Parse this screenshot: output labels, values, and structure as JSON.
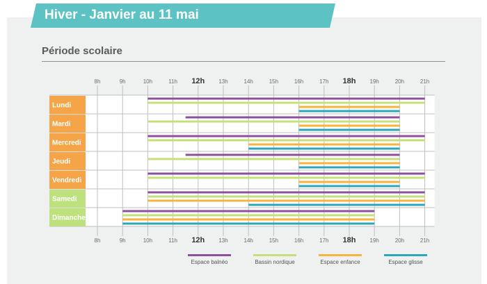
{
  "header": {
    "title": "Hiver - Janvier au 11 mai",
    "subtitle": "Période scolaire"
  },
  "colors": {
    "banner": "#5cc2c3",
    "weekday_label_bg": "#f5a548",
    "weekend_label_bg": "#bde27d",
    "grid": "#bfbfbf",
    "Espace balnéo": "#8e4f9c",
    "Bassin nordique": "#c5e07a",
    "Espace enfance": "#f7b33d",
    "Espace glisse": "#2aa7b9"
  },
  "chart_data": {
    "type": "gantt",
    "title": "Hiver - Janvier au 11 mai",
    "subtitle": "Période scolaire",
    "x_unit": "hour",
    "xlim": [
      8,
      21
    ],
    "x_ticks": [
      "8h",
      "9h",
      "10h",
      "11h",
      "12h",
      "13h",
      "14h",
      "15h",
      "16h",
      "17h",
      "18h",
      "19h",
      "20h",
      "21h"
    ],
    "bold_ticks": [
      "12h",
      "18h"
    ],
    "grid": true,
    "legend_position": "bottom",
    "days": [
      "Lundi",
      "Mardi",
      "Mercredi",
      "Jeudi",
      "Vendredi",
      "Samedi",
      "Dimanche"
    ],
    "series": [
      {
        "name": "Espace balnéo",
        "schedule": [
          {
            "day": "Lundi",
            "start": 10,
            "end": 21
          },
          {
            "day": "Mardi",
            "start": 11.5,
            "end": 20
          },
          {
            "day": "Mercredi",
            "start": 10,
            "end": 21
          },
          {
            "day": "Jeudi",
            "start": 11.5,
            "end": 20
          },
          {
            "day": "Vendredi",
            "start": 10,
            "end": 21
          },
          {
            "day": "Samedi",
            "start": 10,
            "end": 21
          },
          {
            "day": "Dimanche",
            "start": 9,
            "end": 19
          }
        ]
      },
      {
        "name": "Bassin nordique",
        "schedule": [
          {
            "day": "Lundi",
            "start": 10,
            "end": 21
          },
          {
            "day": "Mardi",
            "start": 10,
            "end": 20
          },
          {
            "day": "Mercredi",
            "start": 10,
            "end": 21
          },
          {
            "day": "Jeudi",
            "start": 10,
            "end": 20
          },
          {
            "day": "Vendredi",
            "start": 10,
            "end": 21
          },
          {
            "day": "Samedi",
            "start": 10,
            "end": 21
          },
          {
            "day": "Dimanche",
            "start": 9,
            "end": 19
          }
        ]
      },
      {
        "name": "Espace enfance",
        "schedule": [
          {
            "day": "Lundi",
            "start": 16,
            "end": 20
          },
          {
            "day": "Mardi",
            "start": 16,
            "end": 20
          },
          {
            "day": "Mercredi",
            "start": 14,
            "end": 20
          },
          {
            "day": "Jeudi",
            "start": 16,
            "end": 20
          },
          {
            "day": "Vendredi",
            "start": 16,
            "end": 20
          },
          {
            "day": "Samedi",
            "start": 10,
            "end": 21
          },
          {
            "day": "Dimanche",
            "start": 9,
            "end": 19
          }
        ]
      },
      {
        "name": "Espace glisse",
        "schedule": [
          {
            "day": "Lundi",
            "start": 16,
            "end": 20
          },
          {
            "day": "Mardi",
            "start": 16,
            "end": 20
          },
          {
            "day": "Mercredi",
            "start": 14,
            "end": 20
          },
          {
            "day": "Jeudi",
            "start": 16,
            "end": 20
          },
          {
            "day": "Vendredi",
            "start": 16,
            "end": 20
          },
          {
            "day": "Samedi",
            "start": 14,
            "end": 21
          },
          {
            "day": "Dimanche",
            "start": 9,
            "end": 19
          }
        ]
      }
    ]
  }
}
